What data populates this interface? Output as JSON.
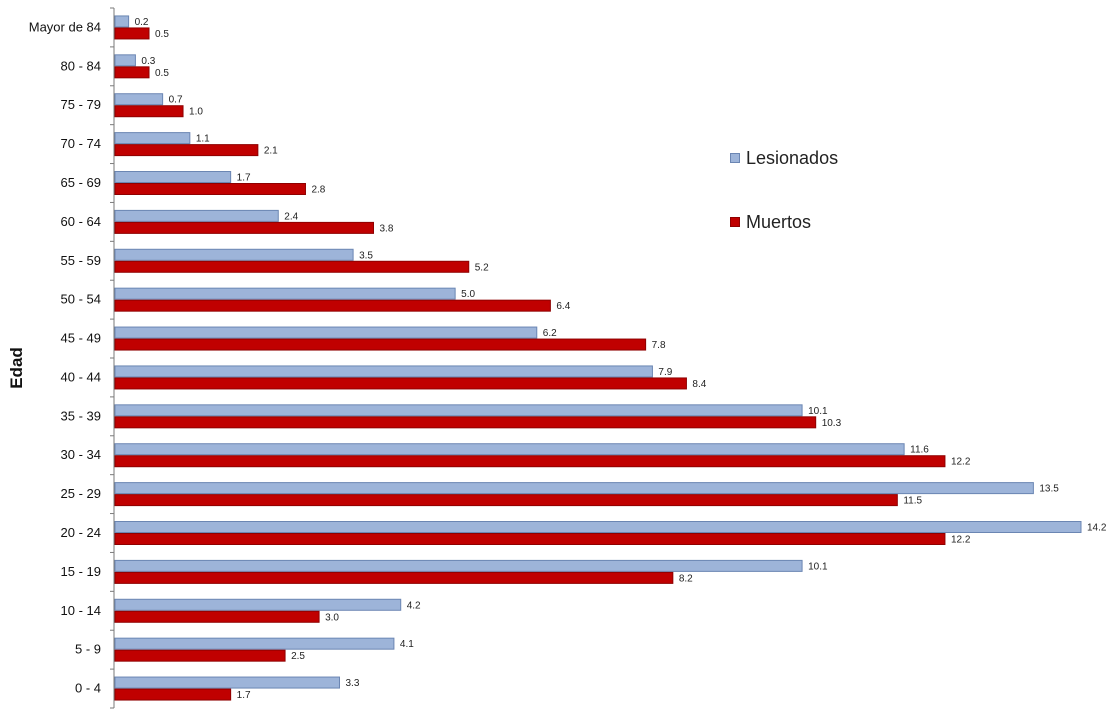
{
  "chart_data": {
    "type": "bar",
    "orientation": "horizontal",
    "ylabel": "Edad",
    "xlabel": "",
    "xlim": [
      0,
      14.2
    ],
    "grid": false,
    "legend_position": "right",
    "categories": [
      "Mayor de 84",
      "80 - 84",
      "75 - 79",
      "70 - 74",
      "65 - 69",
      "60 - 64",
      "55 - 59",
      "50 - 54",
      "45 - 49",
      "40 - 44",
      "35 - 39",
      "30 - 34",
      "25 - 29",
      "20 - 24",
      "15 - 19",
      "10 - 14",
      "5 - 9",
      "0 - 4"
    ],
    "series": [
      {
        "name": "Lesionados",
        "color": "#9db4d9",
        "border": "#6b86b3",
        "values": [
          0.2,
          0.3,
          0.7,
          1.1,
          1.7,
          2.4,
          3.5,
          5.0,
          6.2,
          7.9,
          10.1,
          11.6,
          13.5,
          14.2,
          10.1,
          4.2,
          4.1,
          3.3
        ],
        "labels": [
          "0.2",
          "0.3",
          "0.7",
          "1.1",
          "1.7",
          "2.4",
          "3.5",
          "5.0",
          "6.2",
          "7.9",
          "10.1",
          "11.6",
          "13.5",
          "14.2",
          "10.1",
          "4.2",
          "4.1",
          "3.3"
        ]
      },
      {
        "name": "Muertos",
        "color": "#c00000",
        "border": "#8f0000",
        "values": [
          0.5,
          0.5,
          1.0,
          2.1,
          2.8,
          3.8,
          5.2,
          6.4,
          7.8,
          8.4,
          10.3,
          12.2,
          11.5,
          12.2,
          8.2,
          3.0,
          2.5,
          1.7
        ],
        "labels": [
          "0.5",
          "0.5",
          "1.0",
          "2.1",
          "2.8",
          "3.8",
          "5.2",
          "6.4",
          "7.8",
          "8.4",
          "10.3",
          "12.2",
          "11.5",
          "12.2",
          "8.2",
          "3.0",
          "2.5",
          "1.7"
        ]
      }
    ]
  }
}
